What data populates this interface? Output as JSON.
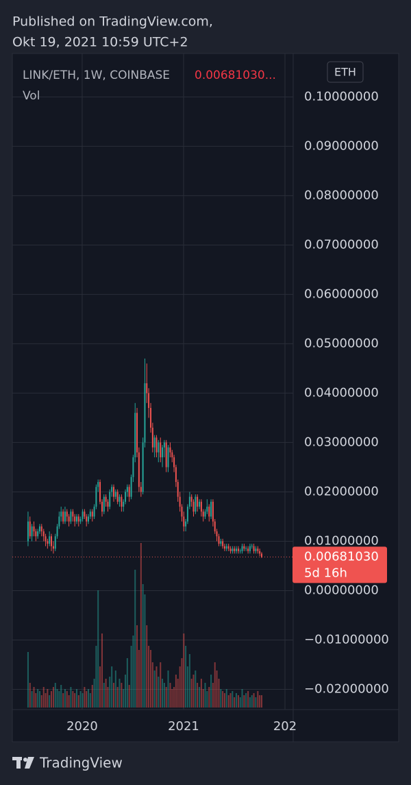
{
  "header": {
    "published": "Published on TradingView.com,",
    "date": "Okt 19, 2021 10:59 UTC+2"
  },
  "footer": {
    "brand": "TradingView"
  },
  "chart_data": {
    "type": "candlestick",
    "symbol": "LINK/ETH, 1W, COINBASE",
    "legend_value": "0.00681030...",
    "volume_label": "Vol",
    "currency": "ETH",
    "up_color": "#26a69a",
    "down_color": "#ef5350",
    "grid": true,
    "last_price": {
      "value": 0.0068103,
      "label": "0.00681030"
    },
    "countdown": "5d 16h",
    "xlim": [
      2019.311,
      2022.081
    ],
    "xticks": [
      2020,
      2021,
      {
        "value": 2022,
        "label": "202"
      }
    ],
    "ylim": [
      -0.0241,
      0.1088
    ],
    "yticks": [
      {
        "value": 0.1,
        "label": "0.10000000"
      },
      {
        "value": 0.09,
        "label": "0.09000000"
      },
      {
        "value": 0.08,
        "label": "0.08000000"
      },
      {
        "value": 0.07,
        "label": "0.07000000"
      },
      {
        "value": 0.06,
        "label": "0.06000000"
      },
      {
        "value": 0.05,
        "label": "0.05000000"
      },
      {
        "value": 0.04,
        "label": "0.04000000"
      },
      {
        "value": 0.03,
        "label": "0.03000000"
      },
      {
        "value": 0.02,
        "label": "0.02000000"
      },
      {
        "value": 0.01,
        "label": "0.01000000"
      },
      {
        "value": 0,
        "label": "0.00000000"
      },
      {
        "value": -0.01,
        "label": "−0.01000000"
      },
      {
        "value": -0.02,
        "label": "−0.02000000"
      }
    ],
    "x": [
      2019.466,
      2019.485,
      2019.504,
      2019.524,
      2019.543,
      2019.562,
      2019.581,
      2019.6,
      2019.62,
      2019.639,
      2019.658,
      2019.677,
      2019.696,
      2019.716,
      2019.735,
      2019.754,
      2019.773,
      2019.792,
      2019.812,
      2019.831,
      2019.85,
      2019.869,
      2019.888,
      2019.908,
      2019.927,
      2019.946,
      2019.965,
      2019.984,
      2020.004,
      2020.023,
      2020.042,
      2020.061,
      2020.08,
      2020.1,
      2020.119,
      2020.138,
      2020.157,
      2020.176,
      2020.196,
      2020.215,
      2020.234,
      2020.253,
      2020.272,
      2020.292,
      2020.311,
      2020.33,
      2020.349,
      2020.368,
      2020.388,
      2020.407,
      2020.426,
      2020.445,
      2020.464,
      2020.484,
      2020.503,
      2020.522,
      2020.541,
      2020.56,
      2020.58,
      2020.599,
      2020.618,
      2020.637,
      2020.656,
      2020.676,
      2020.695,
      2020.714,
      2020.733,
      2020.752,
      2020.772,
      2020.791,
      2020.81,
      2020.829,
      2020.848,
      2020.868,
      2020.887,
      2020.906,
      2020.925,
      2020.944,
      2020.964,
      2020.983,
      2021.002,
      2021.021,
      2021.04,
      2021.06,
      2021.079,
      2021.098,
      2021.117,
      2021.136,
      2021.156,
      2021.175,
      2021.194,
      2021.213,
      2021.232,
      2021.252,
      2021.271,
      2021.29,
      2021.309,
      2021.328,
      2021.348,
      2021.367,
      2021.386,
      2021.405,
      2021.424,
      2021.444,
      2021.463,
      2021.482,
      2021.501,
      2021.52,
      2021.54,
      2021.559,
      2021.578,
      2021.597,
      2021.616,
      2021.636,
      2021.655,
      2021.674,
      2021.693,
      2021.712,
      2021.732,
      2021.751,
      2021.77
    ],
    "ohlc": [
      [
        0.01,
        0.016,
        0.009,
        0.014
      ],
      [
        0.014,
        0.015,
        0.0105,
        0.011
      ],
      [
        0.011,
        0.0135,
        0.01,
        0.013
      ],
      [
        0.013,
        0.014,
        0.011,
        0.012
      ],
      [
        0.012,
        0.0125,
        0.01,
        0.011
      ],
      [
        0.011,
        0.0125,
        0.0105,
        0.012
      ],
      [
        0.012,
        0.0135,
        0.0115,
        0.013
      ],
      [
        0.013,
        0.0135,
        0.011,
        0.012
      ],
      [
        0.012,
        0.0125,
        0.01,
        0.011
      ],
      [
        0.011,
        0.0115,
        0.009,
        0.01
      ],
      [
        0.01,
        0.0105,
        0.0085,
        0.0095
      ],
      [
        0.0095,
        0.012,
        0.009,
        0.011
      ],
      [
        0.011,
        0.0115,
        0.008,
        0.009
      ],
      [
        0.009,
        0.01,
        0.0075,
        0.0085
      ],
      [
        0.0085,
        0.0115,
        0.008,
        0.011
      ],
      [
        0.011,
        0.0135,
        0.0105,
        0.013
      ],
      [
        0.013,
        0.016,
        0.0125,
        0.015
      ],
      [
        0.015,
        0.017,
        0.014,
        0.016
      ],
      [
        0.016,
        0.0165,
        0.0135,
        0.014
      ],
      [
        0.014,
        0.017,
        0.0135,
        0.016
      ],
      [
        0.016,
        0.0165,
        0.014,
        0.015
      ],
      [
        0.015,
        0.0155,
        0.013,
        0.014
      ],
      [
        0.014,
        0.0165,
        0.0135,
        0.016
      ],
      [
        0.016,
        0.0165,
        0.014,
        0.015
      ],
      [
        0.015,
        0.0155,
        0.013,
        0.014
      ],
      [
        0.014,
        0.0155,
        0.0135,
        0.015
      ],
      [
        0.015,
        0.0155,
        0.013,
        0.014
      ],
      [
        0.014,
        0.015,
        0.0135,
        0.0145
      ],
      [
        0.0145,
        0.0165,
        0.014,
        0.016
      ],
      [
        0.016,
        0.0165,
        0.0145,
        0.015
      ],
      [
        0.015,
        0.0155,
        0.013,
        0.014
      ],
      [
        0.014,
        0.0155,
        0.0135,
        0.015
      ],
      [
        0.015,
        0.0165,
        0.0145,
        0.016
      ],
      [
        0.016,
        0.0165,
        0.014,
        0.015
      ],
      [
        0.015,
        0.0175,
        0.0145,
        0.017
      ],
      [
        0.017,
        0.0215,
        0.0165,
        0.021
      ],
      [
        0.021,
        0.0225,
        0.02,
        0.022
      ],
      [
        0.022,
        0.0225,
        0.0175,
        0.018
      ],
      [
        0.018,
        0.0185,
        0.015,
        0.016
      ],
      [
        0.016,
        0.0195,
        0.0155,
        0.019
      ],
      [
        0.019,
        0.0195,
        0.017,
        0.018
      ],
      [
        0.018,
        0.0185,
        0.016,
        0.017
      ],
      [
        0.017,
        0.0205,
        0.0165,
        0.02
      ],
      [
        0.02,
        0.0215,
        0.019,
        0.021
      ],
      [
        0.021,
        0.0215,
        0.018,
        0.019
      ],
      [
        0.019,
        0.0205,
        0.0185,
        0.02
      ],
      [
        0.02,
        0.0205,
        0.0175,
        0.018
      ],
      [
        0.018,
        0.0195,
        0.017,
        0.019
      ],
      [
        0.019,
        0.0195,
        0.016,
        0.017
      ],
      [
        0.017,
        0.0185,
        0.016,
        0.018
      ],
      [
        0.018,
        0.0205,
        0.0175,
        0.02
      ],
      [
        0.02,
        0.0215,
        0.019,
        0.021
      ],
      [
        0.021,
        0.0215,
        0.018,
        0.019
      ],
      [
        0.019,
        0.0235,
        0.0185,
        0.023
      ],
      [
        0.023,
        0.0275,
        0.022,
        0.027
      ],
      [
        0.027,
        0.038,
        0.026,
        0.036
      ],
      [
        0.036,
        0.037,
        0.027,
        0.028
      ],
      [
        0.028,
        0.029,
        0.02,
        0.021
      ],
      [
        0.021,
        0.022,
        0.019,
        0.02
      ],
      [
        0.02,
        0.031,
        0.0195,
        0.03
      ],
      [
        0.03,
        0.047,
        0.029,
        0.042
      ],
      [
        0.042,
        0.046,
        0.038,
        0.04
      ],
      [
        0.04,
        0.041,
        0.035,
        0.037
      ],
      [
        0.037,
        0.038,
        0.032,
        0.033
      ],
      [
        0.033,
        0.034,
        0.028,
        0.029
      ],
      [
        0.029,
        0.0315,
        0.027,
        0.031
      ],
      [
        0.031,
        0.0315,
        0.027,
        0.028
      ],
      [
        0.028,
        0.0305,
        0.026,
        0.03
      ],
      [
        0.03,
        0.031,
        0.026,
        0.027
      ],
      [
        0.027,
        0.0295,
        0.025,
        0.029
      ],
      [
        0.029,
        0.0305,
        0.027,
        0.03
      ],
      [
        0.03,
        0.0305,
        0.024,
        0.025
      ],
      [
        0.025,
        0.0295,
        0.024,
        0.029
      ],
      [
        0.029,
        0.03,
        0.027,
        0.028
      ],
      [
        0.028,
        0.0285,
        0.026,
        0.027
      ],
      [
        0.027,
        0.0275,
        0.024,
        0.025
      ],
      [
        0.025,
        0.0255,
        0.021,
        0.022
      ],
      [
        0.022,
        0.0225,
        0.018,
        0.019
      ],
      [
        0.019,
        0.02,
        0.016,
        0.017
      ],
      [
        0.017,
        0.0175,
        0.014,
        0.015
      ],
      [
        0.015,
        0.016,
        0.012,
        0.013
      ],
      [
        0.013,
        0.0145,
        0.012,
        0.014
      ],
      [
        0.014,
        0.0175,
        0.0135,
        0.017
      ],
      [
        0.017,
        0.02,
        0.0165,
        0.019
      ],
      [
        0.019,
        0.0195,
        0.017,
        0.018
      ],
      [
        0.018,
        0.0185,
        0.015,
        0.016
      ],
      [
        0.016,
        0.0195,
        0.0155,
        0.019
      ],
      [
        0.019,
        0.0195,
        0.016,
        0.017
      ],
      [
        0.017,
        0.0185,
        0.0165,
        0.018
      ],
      [
        0.018,
        0.0185,
        0.015,
        0.016
      ],
      [
        0.016,
        0.0165,
        0.014,
        0.015
      ],
      [
        0.015,
        0.0165,
        0.0145,
        0.016
      ],
      [
        0.016,
        0.0185,
        0.0155,
        0.017
      ],
      [
        0.017,
        0.0175,
        0.014,
        0.015
      ],
      [
        0.015,
        0.0185,
        0.0145,
        0.018
      ],
      [
        0.018,
        0.0185,
        0.013,
        0.014
      ],
      [
        0.014,
        0.0145,
        0.0115,
        0.012
      ],
      [
        0.012,
        0.0125,
        0.01,
        0.011
      ],
      [
        0.011,
        0.0115,
        0.009,
        0.0095
      ],
      [
        0.0095,
        0.0105,
        0.009,
        0.01
      ],
      [
        0.01,
        0.0105,
        0.0085,
        0.009
      ],
      [
        0.009,
        0.0095,
        0.008,
        0.0085
      ],
      [
        0.0085,
        0.0095,
        0.008,
        0.009
      ],
      [
        0.009,
        0.0095,
        0.008,
        0.0085
      ],
      [
        0.0085,
        0.009,
        0.0075,
        0.008
      ],
      [
        0.008,
        0.009,
        0.0075,
        0.0085
      ],
      [
        0.0085,
        0.009,
        0.0075,
        0.008
      ],
      [
        0.008,
        0.009,
        0.0075,
        0.0085
      ],
      [
        0.0085,
        0.009,
        0.0075,
        0.008
      ],
      [
        0.008,
        0.0085,
        0.0075,
        0.0081
      ],
      [
        0.008,
        0.0095,
        0.0075,
        0.009
      ],
      [
        0.009,
        0.0095,
        0.008,
        0.0085
      ],
      [
        0.0085,
        0.009,
        0.008,
        0.0086
      ],
      [
        0.0085,
        0.009,
        0.0075,
        0.008
      ],
      [
        0.008,
        0.0095,
        0.0075,
        0.009
      ],
      [
        0.009,
        0.0095,
        0.0085,
        0.0091
      ],
      [
        0.009,
        0.0095,
        0.0075,
        0.008
      ],
      [
        0.008,
        0.009,
        0.0075,
        0.0085
      ],
      [
        0.0085,
        0.009,
        0.0075,
        0.008
      ],
      [
        0.008,
        0.0085,
        0.007,
        0.0075
      ],
      [
        0.0075,
        0.0078,
        0.0066,
        0.0068103
      ]
    ],
    "volume": [
      27,
      12,
      8,
      10,
      7,
      9,
      8,
      6,
      10,
      7,
      9,
      6,
      8,
      10,
      12,
      9,
      8,
      11,
      7,
      9,
      8,
      6,
      10,
      8,
      7,
      9,
      6,
      8,
      7,
      10,
      8,
      9,
      7,
      11,
      14,
      30,
      57,
      20,
      36,
      12,
      14,
      10,
      15,
      20,
      12,
      18,
      10,
      14,
      12,
      9,
      16,
      24,
      11,
      30,
      35,
      67,
      40,
      28,
      80,
      60,
      55,
      40,
      30,
      28,
      22,
      18,
      20,
      15,
      22,
      14,
      12,
      10,
      18,
      12,
      9,
      10,
      16,
      14,
      20,
      24,
      36,
      30,
      20,
      26,
      14,
      16,
      18,
      12,
      10,
      14,
      9,
      12,
      8,
      10,
      16,
      12,
      22,
      18,
      14,
      9,
      8,
      7,
      9,
      6,
      7,
      8,
      5,
      7,
      6,
      5,
      9,
      6,
      7,
      8,
      5,
      6,
      7,
      5,
      8,
      6,
      6
    ]
  }
}
